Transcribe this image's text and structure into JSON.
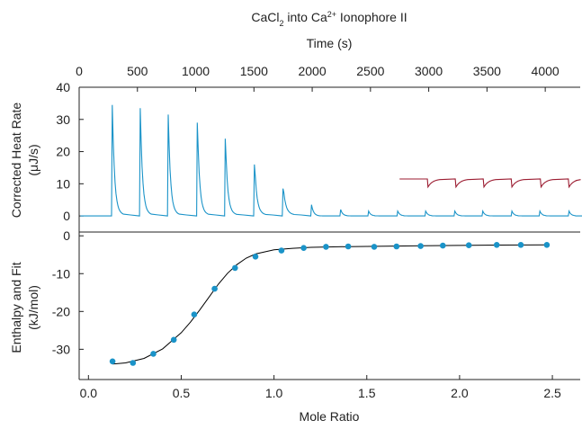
{
  "chart_data": [
    {
      "type": "line",
      "panel": "top",
      "title": "CaCl₂ into Ca²⁺ Ionophore II",
      "xlabel": "Time (s)",
      "ylabel": [
        "Corrected Heat Rate",
        "(μJ/s)"
      ],
      "xlim": [
        0,
        4300
      ],
      "ylim": [
        -5,
        40
      ],
      "xticks": [
        "0",
        "500",
        "1000",
        "1500",
        "2000",
        "2500",
        "3000",
        "3500",
        "4000"
      ],
      "yticks": [
        "0",
        "10",
        "20",
        "30",
        "40"
      ],
      "grid": false,
      "series": [
        {
          "color": "#1a93c8",
          "baseline": 0,
          "injections": [
            {
              "t": 280,
              "peak": 34.5
            },
            {
              "t": 520,
              "peak": 33.5
            },
            {
              "t": 760,
              "peak": 31.5
            },
            {
              "t": 1010,
              "peak": 29
            },
            {
              "t": 1250,
              "peak": 24
            },
            {
              "t": 1500,
              "peak": 16
            },
            {
              "t": 1745,
              "peak": 8.5
            },
            {
              "t": 1990,
              "peak": 3.5
            },
            {
              "t": 2240,
              "peak": 2
            },
            {
              "t": 2480,
              "peak": 1.5
            },
            {
              "t": 2730,
              "peak": 1.5
            },
            {
              "t": 2970,
              "peak": 1.5
            },
            {
              "t": 3220,
              "peak": 1.5
            },
            {
              "t": 3460,
              "peak": 1.5
            },
            {
              "t": 3710,
              "peak": 1.5
            },
            {
              "t": 3950,
              "peak": 1.5
            },
            {
              "t": 4200,
              "peak": 1.5
            }
          ]
        },
        {
          "color": "#9b1b30",
          "baseline": 11.5,
          "x_start": 2750,
          "injections": [
            {
              "t": 2990,
              "peak": -2.5
            },
            {
              "t": 3230,
              "peak": -2.5
            },
            {
              "t": 3470,
              "peak": -2.5
            },
            {
              "t": 3710,
              "peak": -2.5
            },
            {
              "t": 3960,
              "peak": -2.5
            },
            {
              "t": 4200,
              "peak": -2.5
            }
          ]
        }
      ]
    },
    {
      "type": "scatter",
      "panel": "bottom",
      "xlabel": "Mole Ratio",
      "ylabel": [
        "Enthalpy and Fit",
        "(kJ/mol)"
      ],
      "xlim": [
        -0.05,
        2.65
      ],
      "ylim": [
        -38,
        1
      ],
      "xticks": [
        "0.0",
        "0.5",
        "1.0",
        "1.5",
        "2.0",
        "2.5"
      ],
      "yticks": [
        "0",
        "-10",
        "-20",
        "-30"
      ],
      "grid": false,
      "point_color": "#1a93c8",
      "fit_color": "#000000",
      "x": [
        0.13,
        0.24,
        0.35,
        0.46,
        0.57,
        0.68,
        0.79,
        0.9,
        1.04,
        1.16,
        1.28,
        1.4,
        1.54,
        1.66,
        1.79,
        1.91,
        2.05,
        2.2,
        2.33,
        2.47
      ],
      "y": [
        -33.2,
        -33.6,
        -31.2,
        -27.5,
        -20.8,
        -14.0,
        -8.5,
        -5.5,
        -3.9,
        -3.2,
        -2.9,
        -2.8,
        -2.9,
        -2.8,
        -2.7,
        -2.6,
        -2.5,
        -2.4,
        -2.4,
        -2.4
      ],
      "fit": {
        "x": [
          0.13,
          0.2,
          0.3,
          0.4,
          0.5,
          0.55,
          0.6,
          0.65,
          0.7,
          0.75,
          0.8,
          0.85,
          0.9,
          1.0,
          1.1,
          1.2,
          1.4,
          1.6,
          1.8,
          2.0,
          2.2,
          2.47
        ],
        "y": [
          -33.9,
          -33.6,
          -32.4,
          -29.9,
          -25.6,
          -22.8,
          -19.6,
          -16.2,
          -12.8,
          -9.9,
          -7.6,
          -5.9,
          -4.8,
          -3.7,
          -3.3,
          -3.05,
          -2.85,
          -2.75,
          -2.65,
          -2.55,
          -2.45,
          -2.4
        ]
      }
    }
  ]
}
